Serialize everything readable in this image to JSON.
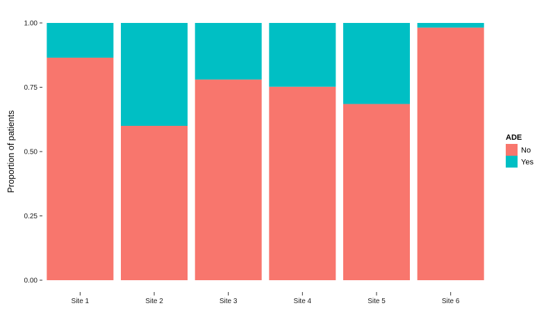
{
  "chart_data": {
    "type": "bar",
    "stacked": true,
    "categories": [
      "Site 1",
      "Site 2",
      "Site 3",
      "Site 4",
      "Site 5",
      "Site 6"
    ],
    "series": [
      {
        "name": "No",
        "color": "#F8766D",
        "values": [
          0.865,
          0.6,
          0.78,
          0.752,
          0.685,
          0.982
        ]
      },
      {
        "name": "Yes",
        "color": "#00BFC4",
        "values": [
          0.135,
          0.4,
          0.22,
          0.248,
          0.315,
          0.018
        ]
      }
    ],
    "ylabel": "Proportion of patients",
    "xlabel": "",
    "ylim": [
      0,
      1
    ],
    "yticks": [
      0,
      0.25,
      0.5,
      0.75,
      1.0
    ],
    "ytick_labels": [
      "0.00",
      "0.25",
      "0.50",
      "0.75",
      "1.00"
    ],
    "legend": {
      "title": "ADE",
      "position": "right"
    },
    "grid": false
  }
}
